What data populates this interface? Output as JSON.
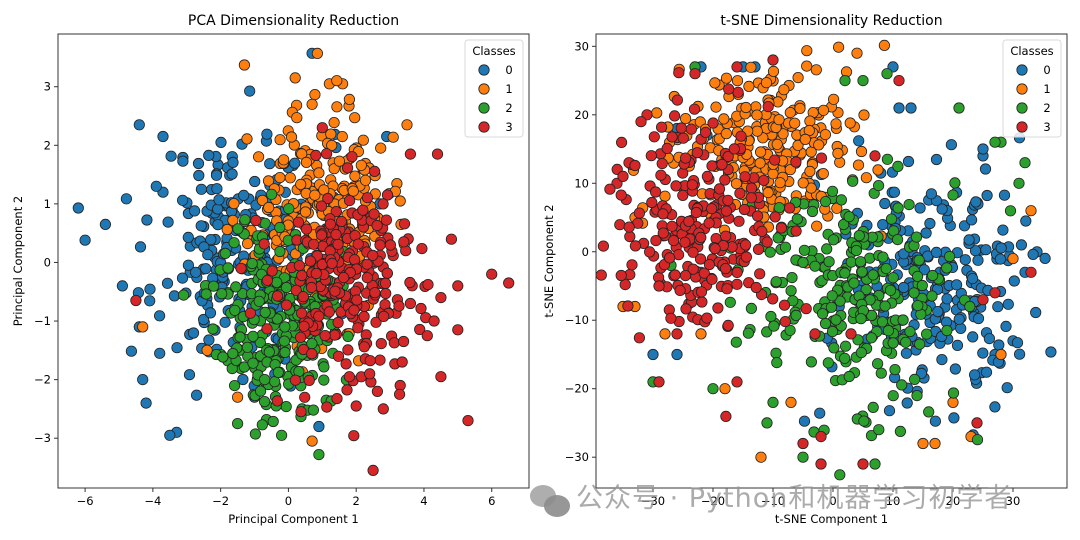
{
  "chart_data": [
    {
      "type": "scatter",
      "title": "PCA Dimensionality Reduction",
      "xlabel": "Principal Component 1",
      "ylabel": "Principal Component 2",
      "xlim": [
        -6.8,
        7.1
      ],
      "ylim": [
        -3.85,
        3.9
      ],
      "xticks": [
        -6,
        -4,
        -2,
        0,
        2,
        4,
        6
      ],
      "yticks": [
        -3,
        -2,
        -1,
        0,
        1,
        2,
        3
      ],
      "grid": false,
      "legend": {
        "title": "Classes",
        "placement": "top-right",
        "entries": [
          "0",
          "1",
          "2",
          "3"
        ]
      },
      "series": [
        {
          "name": "0",
          "color": "#1f77b4",
          "generated": {
            "count": 250,
            "mean": [
              -1.4,
              0.2
            ],
            "std": [
              1.2,
              1.0
            ],
            "seed": 11
          },
          "points": [
            [
              -6.2,
              0.93
            ],
            [
              -6.0,
              0.38
            ],
            [
              -5.4,
              0.65
            ],
            [
              -4.4,
              2.35
            ],
            [
              -3.7,
              2.15
            ],
            [
              -3.9,
              1.3
            ],
            [
              -3.7,
              1.2
            ],
            [
              -4.9,
              -0.4
            ],
            [
              -4.3,
              -2.0
            ],
            [
              -4.2,
              -2.4
            ],
            [
              -3.5,
              -2.95
            ],
            [
              -3.3,
              -2.9
            ],
            [
              -3.8,
              -1.55
            ],
            [
              0.7,
              3.57
            ],
            [
              0.9,
              -2.8
            ],
            [
              2.9,
              2.15
            ],
            [
              2.7,
              1.0
            ],
            [
              -1.0,
              -2.3
            ],
            [
              -4.4,
              -1.1
            ]
          ]
        },
        {
          "name": "1",
          "color": "#ff7f0e",
          "generated": {
            "count": 250,
            "mean": [
              0.9,
              0.8
            ],
            "std": [
              1.0,
              0.9
            ],
            "seed": 23
          },
          "points": [
            [
              -1.3,
              3.37
            ],
            [
              0.2,
              3.15
            ],
            [
              0.7,
              2.7
            ],
            [
              1.6,
              3.05
            ],
            [
              3.5,
              2.35
            ],
            [
              2.2,
              1.6
            ],
            [
              3.3,
              1.05
            ],
            [
              0.7,
              -3.05
            ],
            [
              -1.5,
              -2.3
            ],
            [
              -0.5,
              -1.65
            ],
            [
              -4.3,
              -1.1
            ],
            [
              -2.4,
              -1.5
            ]
          ]
        },
        {
          "name": "2",
          "color": "#2ca02c",
          "generated": {
            "count": 250,
            "mean": [
              -0.3,
              -0.9
            ],
            "std": [
              0.9,
              0.85
            ],
            "seed": 37
          },
          "points": [
            [
              0.9,
              -3.28
            ],
            [
              -0.2,
              -2.95
            ],
            [
              -1.5,
              -2.75
            ],
            [
              0.4,
              -2.5
            ],
            [
              -0.7,
              -2.0
            ],
            [
              -1.2,
              -1.6
            ]
          ]
        },
        {
          "name": "3",
          "color": "#d62728",
          "generated": {
            "count": 250,
            "mean": [
              1.8,
              -0.4
            ],
            "std": [
              1.1,
              0.9
            ],
            "seed": 53
          },
          "points": [
            [
              6.0,
              -0.2
            ],
            [
              6.5,
              -0.35
            ],
            [
              5.0,
              -0.4
            ],
            [
              4.5,
              -0.6
            ],
            [
              4.3,
              -1.0
            ],
            [
              5.0,
              -1.15
            ],
            [
              3.6,
              -0.7
            ],
            [
              3.4,
              -1.35
            ],
            [
              4.1,
              -1.25
            ],
            [
              2.5,
              -3.55
            ],
            [
              5.3,
              -2.7
            ],
            [
              4.5,
              -1.95
            ],
            [
              3.3,
              -2.1
            ],
            [
              2.0,
              -2.45
            ],
            [
              2.8,
              -2.5
            ],
            [
              2.4,
              -1.9
            ],
            [
              1.8,
              -1.95
            ],
            [
              4.4,
              1.85
            ],
            [
              3.6,
              1.85
            ],
            [
              1.0,
              2.3
            ],
            [
              -1.4,
              -0.1
            ],
            [
              -4.5,
              -0.65
            ]
          ]
        }
      ]
    },
    {
      "type": "scatter",
      "title": "t-SNE Dimensionality Reduction",
      "xlabel": "t-SNE Component 1",
      "ylabel": "t-SNE Component 2",
      "xlim": [
        -39.5,
        39.0
      ],
      "ylim": [
        -34.5,
        31.8
      ],
      "xticks": [
        -30,
        -20,
        -10,
        0,
        10,
        20,
        30
      ],
      "yticks": [
        -30,
        -20,
        -10,
        0,
        10,
        20,
        30
      ],
      "grid": false,
      "legend": {
        "title": "Classes",
        "placement": "top-right",
        "entries": [
          "0",
          "1",
          "2",
          "3"
        ]
      },
      "series": [
        {
          "name": "0",
          "color": "#1f77b4",
          "generated": {
            "count": 250,
            "mean": [
              17,
              -5
            ],
            "std": [
              9,
              9
            ],
            "seed": 71
          },
          "points": [
            [
              32,
              -3
            ],
            [
              34,
              0
            ],
            [
              30,
              -13
            ],
            [
              27,
              -15
            ],
            [
              -30,
              -15
            ],
            [
              -26,
              -15
            ],
            [
              -22,
              27
            ],
            [
              -15,
              27
            ],
            [
              -13,
              27
            ],
            [
              -21,
              17
            ],
            [
              -26,
              18
            ],
            [
              -22,
              -3
            ],
            [
              -24,
              -3
            ],
            [
              10,
              27
            ],
            [
              11,
              21
            ],
            [
              13,
              21
            ],
            [
              25,
              15
            ],
            [
              25,
              14
            ]
          ]
        },
        {
          "name": "1",
          "color": "#ff7f0e",
          "generated": {
            "count": 250,
            "mean": [
              -11,
              15
            ],
            "std": [
              8,
              6
            ],
            "seed": 83
          },
          "points": [
            [
              4,
              29
            ],
            [
              -35,
              -8
            ],
            [
              -33,
              -8
            ],
            [
              -33,
              5
            ],
            [
              -12,
              -30
            ],
            [
              -7,
              -22
            ],
            [
              15,
              -28
            ],
            [
              17,
              -28
            ],
            [
              20,
              -22
            ],
            [
              23,
              -27
            ],
            [
              28,
              -15
            ],
            [
              33,
              6
            ],
            [
              30,
              -1
            ],
            [
              -28,
              -12
            ],
            [
              -22,
              -12
            ],
            [
              -18,
              -20
            ]
          ]
        },
        {
          "name": "2",
          "color": "#2ca02c",
          "generated": {
            "count": 250,
            "mean": [
              2,
              -6
            ],
            "std": [
              9,
              9
            ],
            "seed": 97
          },
          "points": [
            [
              -23,
              27
            ],
            [
              2,
              25
            ],
            [
              5,
              25
            ],
            [
              9,
              26
            ],
            [
              21,
              21
            ],
            [
              27,
              16
            ],
            [
              28,
              16
            ],
            [
              32,
              13
            ],
            [
              31,
              10
            ],
            [
              14,
              -21
            ],
            [
              7,
              -31
            ],
            [
              -11,
              -25
            ],
            [
              -10,
              -22
            ],
            [
              -5,
              -30
            ],
            [
              -30,
              -19
            ],
            [
              -20,
              -20
            ],
            [
              -27,
              -2
            ]
          ]
        },
        {
          "name": "3",
          "color": "#d62728",
          "generated": {
            "count": 250,
            "mean": [
              -22,
              4
            ],
            "std": [
              7,
              8
            ],
            "seed": 113
          },
          "points": [
            [
              -10,
              28
            ],
            [
              -23,
              26
            ],
            [
              -16,
              27
            ],
            [
              -31,
              20
            ],
            [
              -32,
              19
            ],
            [
              -35,
              11
            ],
            [
              -34,
              13
            ],
            [
              -36,
              10
            ],
            [
              -29,
              -5
            ],
            [
              -26,
              -12
            ],
            [
              -29,
              -19
            ],
            [
              -16,
              -19
            ],
            [
              5,
              -31
            ],
            [
              -5,
              -28
            ],
            [
              -2,
              -27
            ],
            [
              -2,
              -31
            ],
            [
              25,
              -7
            ],
            [
              27,
              -6
            ],
            [
              33,
              -3
            ],
            [
              24,
              -25
            ],
            [
              11,
              25
            ],
            [
              7,
              14
            ],
            [
              -3,
              -12
            ],
            [
              3,
              -12
            ]
          ]
        }
      ]
    }
  ],
  "watermark": {
    "text": "公众号 · Python和机器学习初学者",
    "icon": "wechat-icon"
  }
}
